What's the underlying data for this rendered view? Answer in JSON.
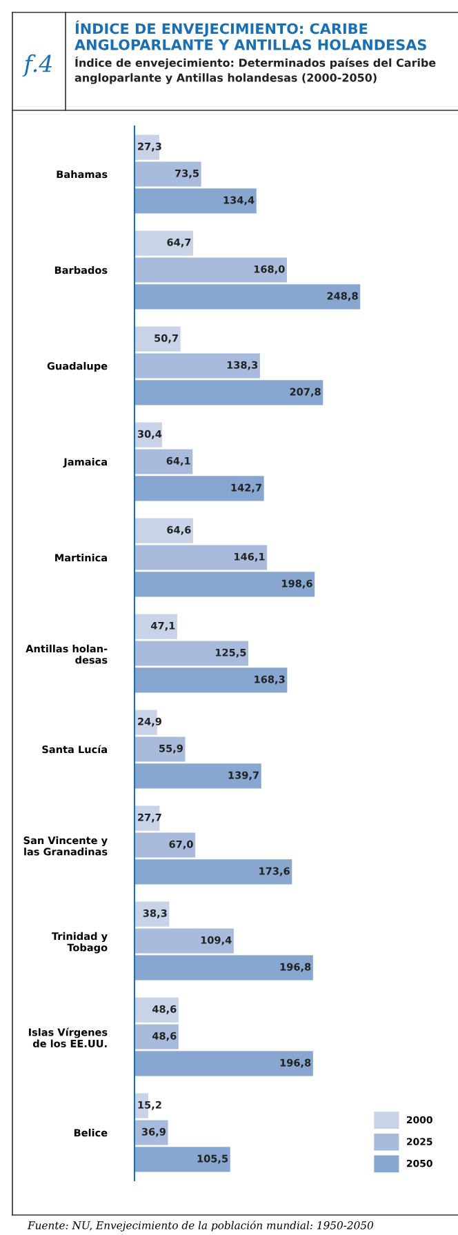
{
  "chart_data": {
    "type": "bar",
    "orientation": "horizontal",
    "title": "ÍNDICE DE ENVEJECIMIENTO: CARIBE ANGLOPARLANTE Y ANTILLAS HOLANDESAS",
    "subtitle": "Índice de envejecimiento: Determinados países del Caribe angloparlante y Antillas holandesas (2000-2050)",
    "annotations": [
      "f.4",
      "Fuente: NU, Envejecimiento de la población mundial: 1950-2050"
    ],
    "categories": [
      "Bahamas",
      "Barbados",
      "Guadalupe",
      "Jamaica",
      "Martinica",
      "Antillas holan-\ndesas",
      "Santa Lucía",
      "San Vincente y\nlas Granadinas",
      "Trinidad y\nTobago",
      "Islas Vírgenes\nde los EE.UU.",
      "Belice"
    ],
    "series": [
      {
        "name": "2000",
        "color": "#c9d3e8",
        "values": [
          27.3,
          64.7,
          50.7,
          30.4,
          64.6,
          47.1,
          24.9,
          27.7,
          38.3,
          48.6,
          15.2
        ],
        "value_labels": [
          "27,3",
          "64,7",
          "50,7",
          "30,4",
          "64,6",
          "47,1",
          "24,9",
          "27,7",
          "38,3",
          "48,6",
          "15,2"
        ]
      },
      {
        "name": "2025",
        "color": "#a9bbdc",
        "values": [
          73.5,
          168.0,
          138.3,
          64.1,
          146.1,
          125.5,
          55.9,
          67.0,
          109.4,
          48.6,
          36.9
        ],
        "value_labels": [
          "73,5",
          "168,0",
          "138,3",
          "64,1",
          "146,1",
          "125,5",
          "55,9",
          "67,0",
          "109,4",
          "48,6",
          "36,9"
        ]
      },
      {
        "name": "2050",
        "color": "#87a6d0",
        "values": [
          134.4,
          248.8,
          207.8,
          142.7,
          198.6,
          168.3,
          139.7,
          173.6,
          196.8,
          196.8,
          105.5
        ],
        "value_labels": [
          "134,4",
          "248,8",
          "207,8",
          "142,7",
          "198,6",
          "168,3",
          "139,7",
          "173,6",
          "196,8",
          "196,8",
          "105,5"
        ]
      }
    ],
    "legend": "bottom right",
    "grid": false
  }
}
